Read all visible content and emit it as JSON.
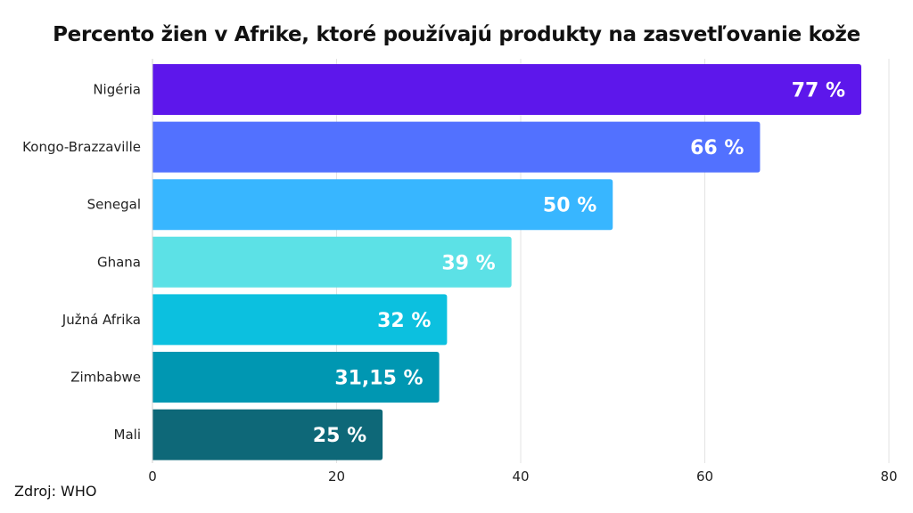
{
  "chart_data": {
    "type": "bar",
    "orientation": "horizontal",
    "title": "Percento žien v Afrike, ktoré používajú produkty na zasvetľovanie kože",
    "categories": [
      "Nigéria",
      "Kongo-Brazzaville",
      "Senegal",
      "Ghana",
      "Južná Afrika",
      "Zimbabwe",
      "Mali"
    ],
    "values": [
      77,
      66,
      50,
      39,
      32,
      31.15,
      25
    ],
    "data_labels": [
      "77 %",
      "66 %",
      "50 %",
      "39 %",
      "32 %",
      "31,15 %",
      "25 %"
    ],
    "colors": [
      "#5d17eb",
      "#5271ff",
      "#38b6ff",
      "#5ce1e6",
      "#0cc0df",
      "#0097b2",
      "#0e6878"
    ],
    "xlim": [
      0,
      80
    ],
    "xticks": [
      0,
      20,
      40,
      60,
      80
    ],
    "xlabel": "",
    "ylabel": "",
    "grid": "vertical",
    "legend": "none"
  },
  "source": "Zdroj: WHO"
}
